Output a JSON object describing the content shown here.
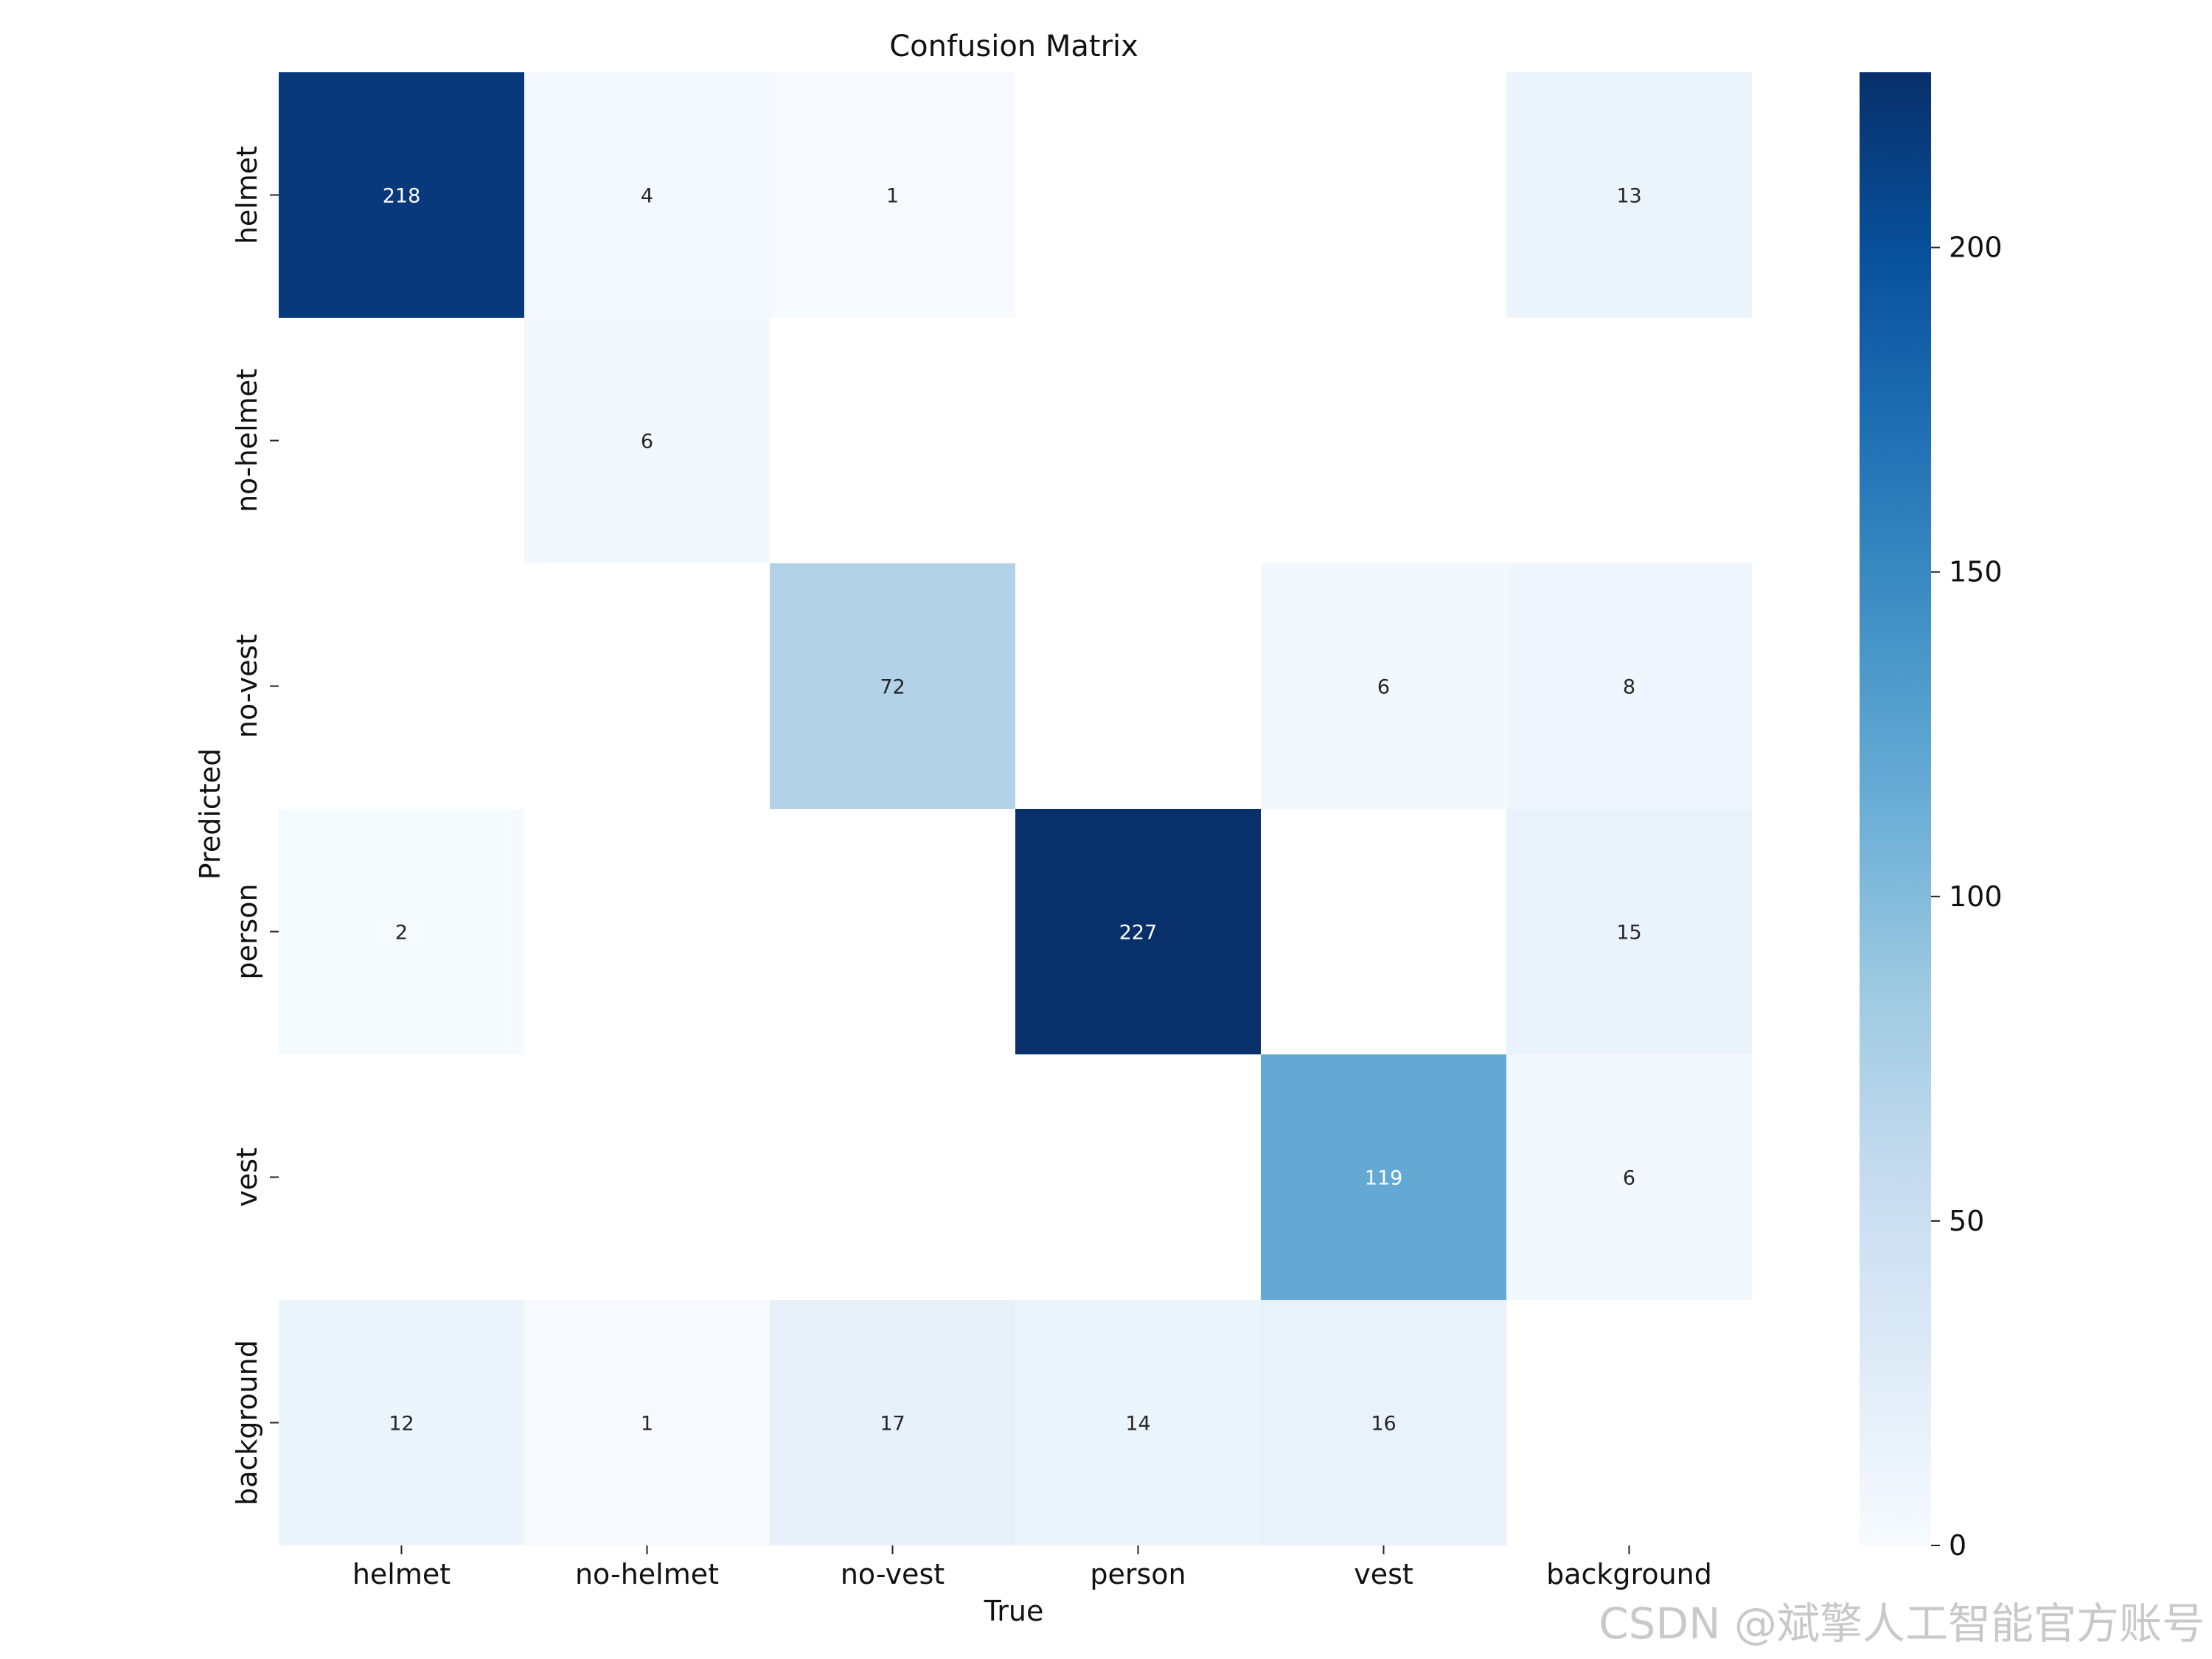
{
  "chart_data": {
    "type": "heatmap",
    "title": "Confusion Matrix",
    "xlabel": "True",
    "ylabel": "Predicted",
    "x_categories": [
      "helmet",
      "no-helmet",
      "no-vest",
      "person",
      "vest",
      "background"
    ],
    "y_categories": [
      "helmet",
      "no-helmet",
      "no-vest",
      "person",
      "vest",
      "background"
    ],
    "matrix": [
      [
        218,
        4,
        1,
        null,
        null,
        13
      ],
      [
        null,
        6,
        null,
        null,
        null,
        null
      ],
      [
        null,
        null,
        72,
        null,
        6,
        8
      ],
      [
        2,
        null,
        null,
        227,
        null,
        15
      ],
      [
        null,
        null,
        null,
        null,
        119,
        6
      ],
      [
        12,
        1,
        17,
        14,
        16,
        null
      ]
    ],
    "colorbar": {
      "range": [
        0,
        227
      ],
      "ticks": [
        0,
        50,
        100,
        150,
        200
      ],
      "colormap": "Blues"
    }
  },
  "watermark": "CSDN @斌擎人工智能官方账号"
}
